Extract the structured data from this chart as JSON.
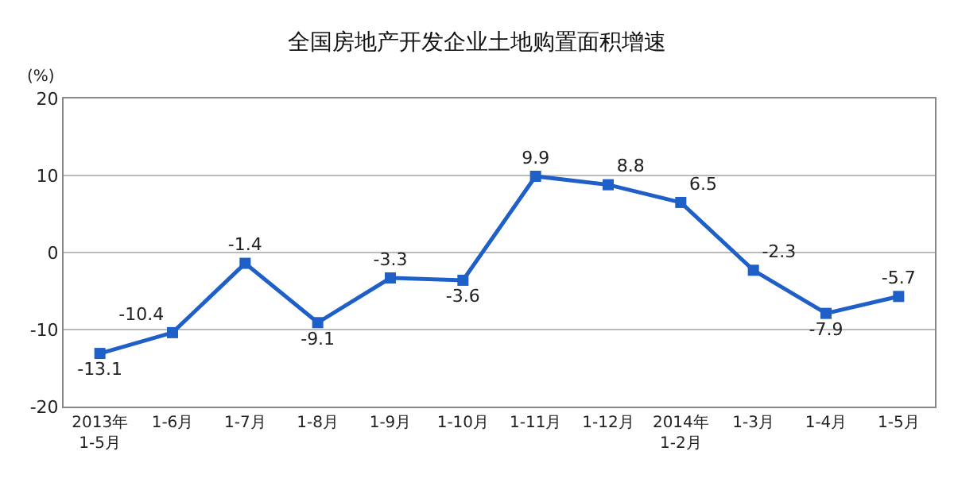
{
  "chart_data": {
    "type": "line",
    "title": "全国房地产开发企业土地购置面积增速",
    "ylabel": "(%)",
    "categories": [
      "2013年\n1-5月",
      "1-6月",
      "1-7月",
      "1-8月",
      "1-9月",
      "1-10月",
      "1-11月",
      "1-12月",
      "2014年\n1-2月",
      "1-3月",
      "1-4月",
      "1-5月"
    ],
    "series": [
      {
        "color": "#1f5fc8",
        "values": [
          -13.1,
          -10.4,
          -1.4,
          -9.1,
          -3.3,
          -3.6,
          9.9,
          8.8,
          6.5,
          -2.3,
          -7.9,
          -5.7
        ]
      }
    ],
    "ylim": [
      -20,
      20
    ],
    "yticks": [
      -20,
      -10,
      0,
      10,
      20
    ],
    "grid": "y",
    "marker": "square",
    "line_style": "solid",
    "data_labels": true
  }
}
